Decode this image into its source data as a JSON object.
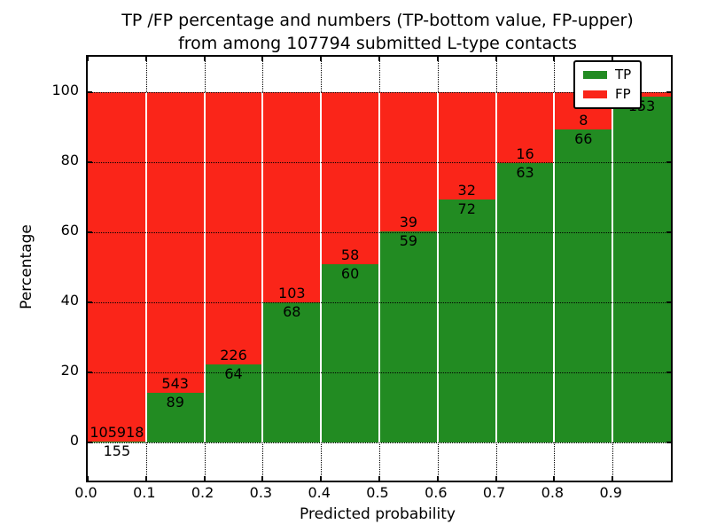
{
  "title": {
    "line1": "TP /FP percentage and numbers (TP-bottom value, FP-upper)",
    "line2": "from among 107794 submitted L-type contacts"
  },
  "axes": {
    "xlabel": "Predicted probability",
    "ylabel": "Percentage",
    "x_tick_labels": [
      "0.0",
      "0.1",
      "0.2",
      "0.3",
      "0.4",
      "0.5",
      "0.6",
      "0.7",
      "0.8",
      "0.9"
    ],
    "y_tick_labels": [
      "0",
      "20",
      "40",
      "60",
      "80",
      "100"
    ]
  },
  "legend": {
    "entries": [
      {
        "label": "TP",
        "color": "#228b22"
      },
      {
        "label": "FP",
        "color": "#fa2519"
      }
    ]
  },
  "colors": {
    "tp_green": "#228b22",
    "fp_red": "#fa2519",
    "grid_black": "#000000",
    "background": "#ffffff"
  },
  "chart_data": {
    "type": "bar",
    "stacked": true,
    "normalized_to_percent": 100,
    "title": "TP /FP percentage and numbers (TP-bottom value, FP-upper) from among 107794 submitted L-type contacts",
    "xlabel": "Predicted probability",
    "ylabel": "Percentage",
    "xlim": [
      0.0,
      1.0
    ],
    "ylim_display": [
      -11,
      110
    ],
    "grid": "dotted",
    "legend_position": "upper right",
    "total_contacts": 107794,
    "bin_width": 0.1,
    "bars": [
      {
        "x0": 0.0,
        "x1": 0.1,
        "tp": 155,
        "fp": 105918,
        "tp_label": "155",
        "fp_label": "105918"
      },
      {
        "x0": 0.1,
        "x1": 0.2,
        "tp": 89,
        "fp": 543,
        "tp_label": "89",
        "fp_label": "543"
      },
      {
        "x0": 0.2,
        "x1": 0.3,
        "tp": 64,
        "fp": 226,
        "tp_label": "64",
        "fp_label": "226"
      },
      {
        "x0": 0.3,
        "x1": 0.4,
        "tp": 68,
        "fp": 103,
        "tp_label": "68",
        "fp_label": "103"
      },
      {
        "x0": 0.4,
        "x1": 0.5,
        "tp": 60,
        "fp": 58,
        "tp_label": "60",
        "fp_label": "58"
      },
      {
        "x0": 0.5,
        "x1": 0.6,
        "tp": 59,
        "fp": 39,
        "tp_label": "59",
        "fp_label": "39"
      },
      {
        "x0": 0.6,
        "x1": 0.7,
        "tp": 72,
        "fp": 32,
        "tp_label": "72",
        "fp_label": "32"
      },
      {
        "x0": 0.7,
        "x1": 0.8,
        "tp": 63,
        "fp": 16,
        "tp_label": "63",
        "fp_label": "16"
      },
      {
        "x0": 0.8,
        "x1": 0.9,
        "tp": 66,
        "fp": 8,
        "tp_label": "66",
        "fp_label": "8"
      },
      {
        "x0": 0.9,
        "x1": 1.0,
        "tp": 153,
        "fp": 2,
        "tp_label": "153",
        "fp_label": ""
      }
    ]
  }
}
